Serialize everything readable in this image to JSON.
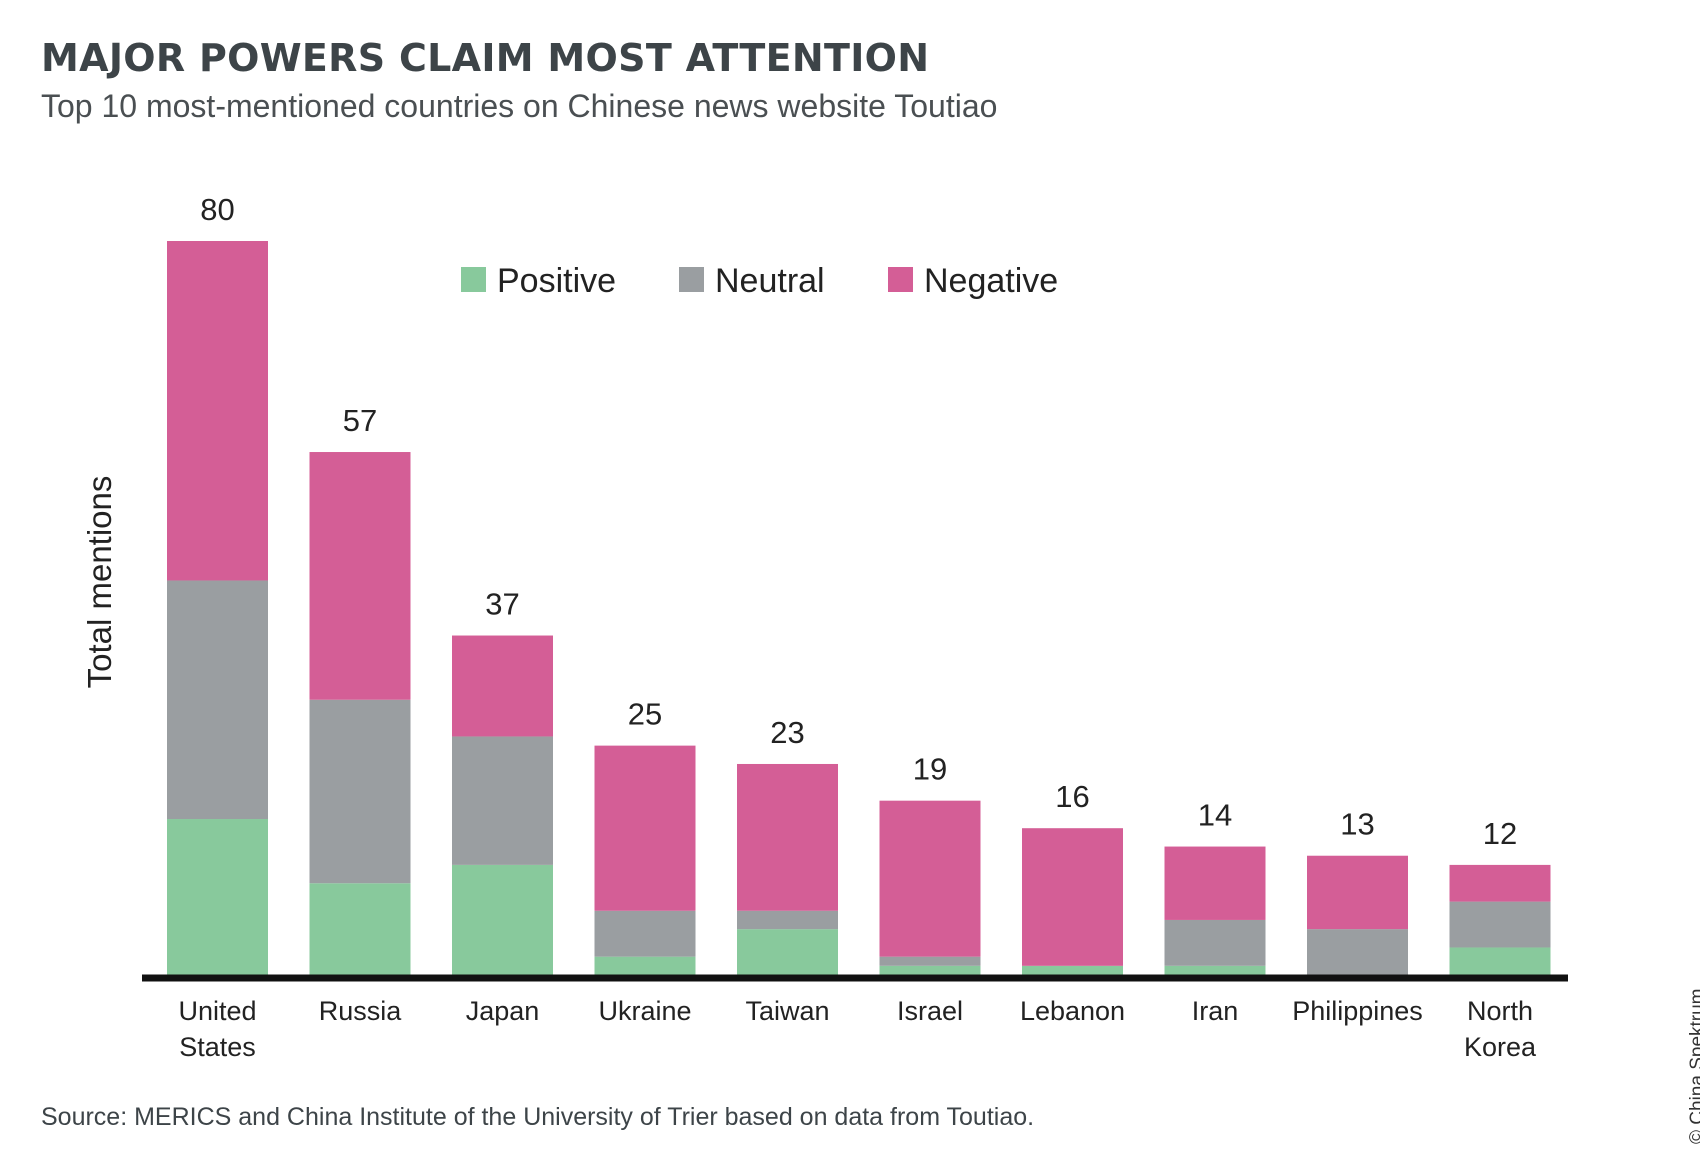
{
  "chart_data": {
    "type": "bar",
    "stacked": true,
    "title": "MAJOR POWERS CLAIM MOST ATTENTION",
    "subtitle": "Top 10 most-mentioned countries on Chinese news website Toutiao",
    "xlabel": "",
    "ylabel": "Total mentions",
    "ylim": [
      0,
      80
    ],
    "grid": false,
    "legend_position": "top-center",
    "categories": [
      [
        "United",
        "States"
      ],
      [
        "Russia"
      ],
      [
        "Japan"
      ],
      [
        "Ukraine"
      ],
      [
        "Taiwan"
      ],
      [
        "Israel"
      ],
      [
        "Lebanon"
      ],
      [
        "Iran"
      ],
      [
        "Philippines"
      ],
      [
        "North",
        "Korea"
      ]
    ],
    "series": [
      {
        "name": "Positive",
        "color": "#88c99c",
        "values": [
          17,
          10,
          12,
          2,
          5,
          1,
          1,
          1,
          0,
          3
        ]
      },
      {
        "name": "Neutral",
        "color": "#9a9ea1",
        "values": [
          26,
          20,
          14,
          5,
          2,
          1,
          0,
          5,
          5,
          5
        ]
      },
      {
        "name": "Negative",
        "color": "#d45e96",
        "values": [
          37,
          27,
          11,
          18,
          16,
          17,
          15,
          8,
          8,
          4
        ]
      }
    ],
    "totals": [
      "80",
      "57",
      "37",
      "25",
      "23",
      "19",
      "16",
      "14",
      "13",
      "12"
    ],
    "source": "Source: MERICS and China Institute of the University of Trier based on data from Toutiao.",
    "copyright": "© China Spektrum"
  }
}
